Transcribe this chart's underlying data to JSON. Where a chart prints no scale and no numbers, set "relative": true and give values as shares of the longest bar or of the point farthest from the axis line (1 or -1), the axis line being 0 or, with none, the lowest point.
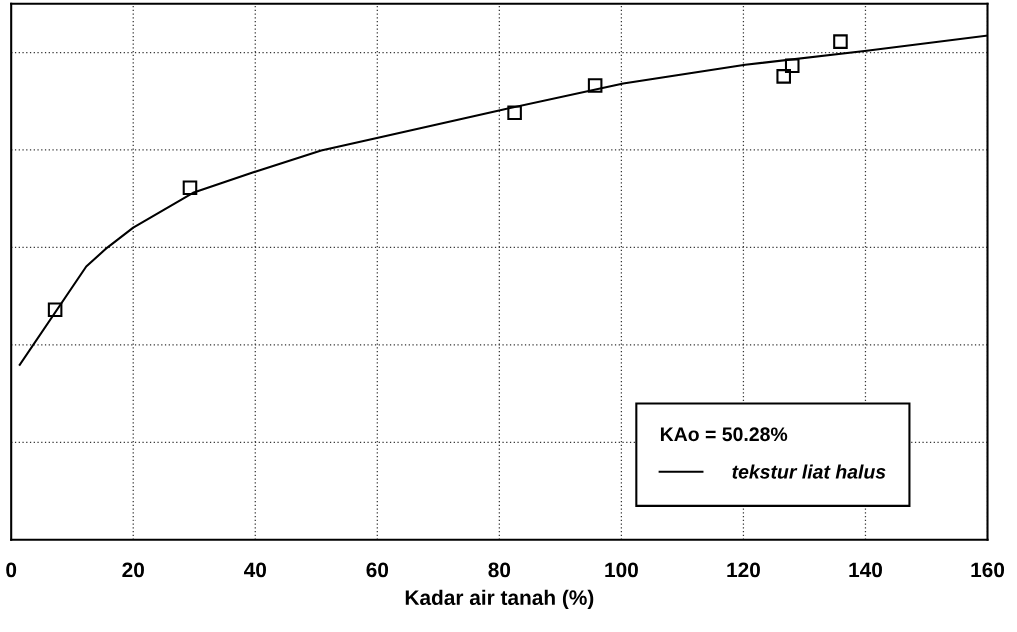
{
  "chart_data": {
    "type": "scatter",
    "relative": true,
    "xlabel": "Kadar air tanah (%)",
    "xlim": [
      0,
      160
    ],
    "xticks": [
      0,
      20,
      40,
      60,
      80,
      100,
      120,
      140,
      160
    ],
    "grid": true,
    "legend": "bottom right",
    "marker": "square",
    "legend_title": "KAo = 50.28%",
    "series": [
      {
        "color": "#000000",
        "x": [
          7.2,
          29.3,
          82.5,
          95.7,
          126.6,
          128.0,
          135.9
        ],
        "values": [
          0.456,
          0.698,
          0.847,
          0.901,
          0.919,
          0.94,
          0.988
        ]
      },
      {
        "type": "line",
        "name": "tekstur liat halus",
        "color": "#000000",
        "marker": "none",
        "line_style": "solid",
        "x": [
          1.4,
          12.3,
          15.7,
          20,
          29.8,
          40.5,
          50.8,
          60.3,
          80.5,
          100.3,
          120.3,
          140.2,
          160
        ],
        "values": [
          0.347,
          0.542,
          0.579,
          0.619,
          0.688,
          0.732,
          0.772,
          0.798,
          0.853,
          0.905,
          0.942,
          0.97,
          1.0
        ]
      }
    ]
  }
}
